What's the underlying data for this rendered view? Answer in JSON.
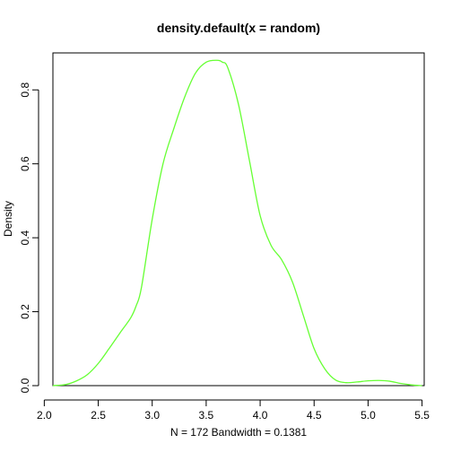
{
  "chart_data": {
    "type": "line",
    "title": "density.default(x = random)",
    "xlabel": "N = 172   Bandwidth = 0.1381",
    "ylabel": "Density",
    "xlim": [
      2.08,
      5.52
    ],
    "ylim": [
      0.0,
      0.9
    ],
    "x_ticks": [
      2.0,
      2.5,
      3.0,
      3.5,
      4.0,
      4.5,
      5.0,
      5.5
    ],
    "x_tick_labels": [
      "2.0",
      "2.5",
      "3.0",
      "3.5",
      "4.0",
      "4.5",
      "5.0",
      "5.5"
    ],
    "y_ticks": [
      0.0,
      0.2,
      0.4,
      0.6,
      0.8
    ],
    "y_tick_labels": [
      "0.0",
      "0.2",
      "0.4",
      "0.6",
      "0.8"
    ],
    "grid": false,
    "series": [
      {
        "name": "density",
        "color": "#66ff33",
        "x": [
          2.08,
          2.2,
          2.3,
          2.4,
          2.5,
          2.6,
          2.7,
          2.8,
          2.85,
          2.9,
          3.0,
          3.1,
          3.2,
          3.3,
          3.4,
          3.5,
          3.6,
          3.65,
          3.7,
          3.8,
          3.9,
          4.0,
          4.1,
          4.2,
          4.3,
          4.4,
          4.5,
          4.6,
          4.7,
          4.8,
          4.9,
          5.0,
          5.1,
          5.2,
          5.3,
          5.4,
          5.5
        ],
        "values": [
          0.0,
          0.003,
          0.013,
          0.03,
          0.06,
          0.1,
          0.142,
          0.183,
          0.215,
          0.265,
          0.45,
          0.6,
          0.695,
          0.78,
          0.845,
          0.875,
          0.88,
          0.875,
          0.86,
          0.76,
          0.61,
          0.46,
          0.38,
          0.34,
          0.28,
          0.19,
          0.1,
          0.045,
          0.015,
          0.008,
          0.01,
          0.013,
          0.014,
          0.012,
          0.006,
          0.002,
          0.0
        ]
      }
    ]
  }
}
